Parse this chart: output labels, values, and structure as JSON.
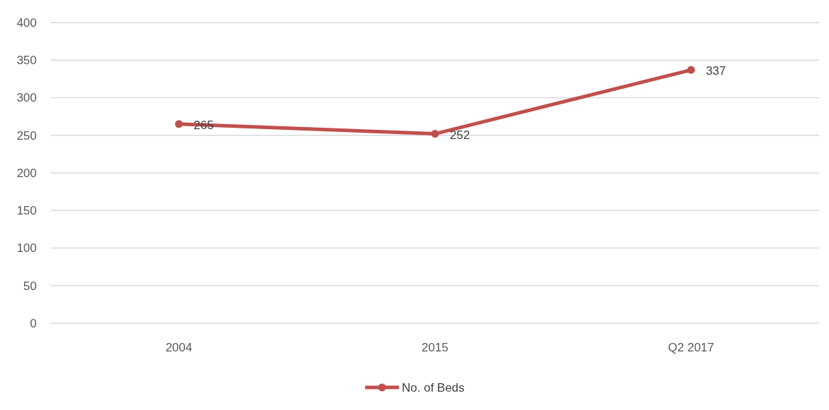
{
  "chart_data": {
    "type": "line",
    "categories": [
      "2004",
      "2015",
      "Q2 2017"
    ],
    "series": [
      {
        "name": "No. of Beds",
        "color": "#c0504d",
        "values": [
          265,
          252,
          337
        ]
      }
    ],
    "ylim": [
      0,
      400
    ],
    "yticks": [
      0,
      50,
      100,
      150,
      200,
      250,
      300,
      350,
      400
    ],
    "grid": "y",
    "legend": "bottom",
    "marker": "circle",
    "data_labels": true
  }
}
